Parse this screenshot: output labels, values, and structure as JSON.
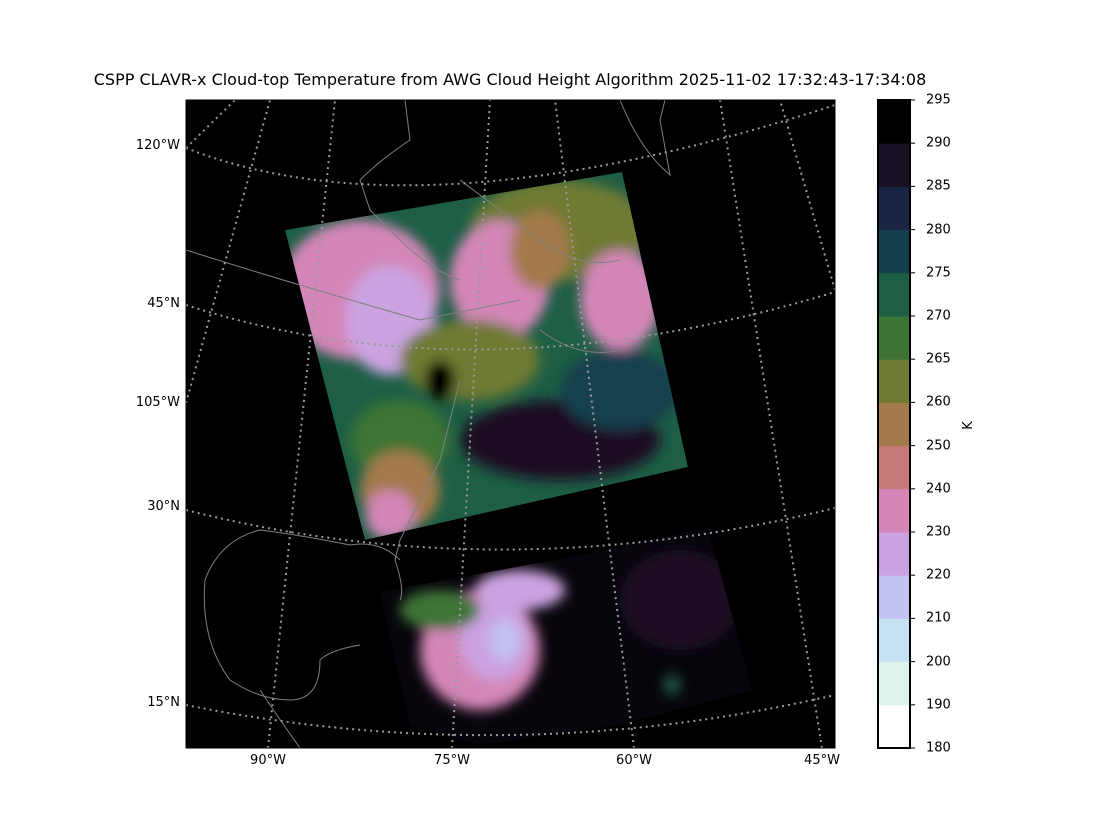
{
  "title": "CSPP CLAVR-x Cloud-top Temperature from AWG Cloud Height Algorithm 2025-11-02 17:32:43-17:34:08",
  "map": {
    "left_labels": [
      "120°W",
      "45°N",
      "105°W",
      "30°N",
      "15°N"
    ],
    "bottom_labels": [
      "90°W",
      "75°W",
      "60°W",
      "45°W"
    ],
    "background_color": "#000000",
    "coastline_color": "#808080",
    "graticule_style": "dotted gray"
  },
  "colorbar": {
    "label": "K",
    "ticks": [
      "180",
      "190",
      "200",
      "210",
      "220",
      "230",
      "240",
      "250",
      "260",
      "265",
      "270",
      "275",
      "280",
      "285",
      "290",
      "295"
    ],
    "colors": [
      "#ffffff",
      "#dff4ec",
      "#c6e1f2",
      "#c3c3f2",
      "#cba3e0",
      "#d486b8",
      "#c67a7a",
      "#a37a4c",
      "#6f7a33",
      "#3d7435",
      "#1d5e45",
      "#163f4d",
      "#1c2444",
      "#1a1024",
      "#000000"
    ]
  }
}
